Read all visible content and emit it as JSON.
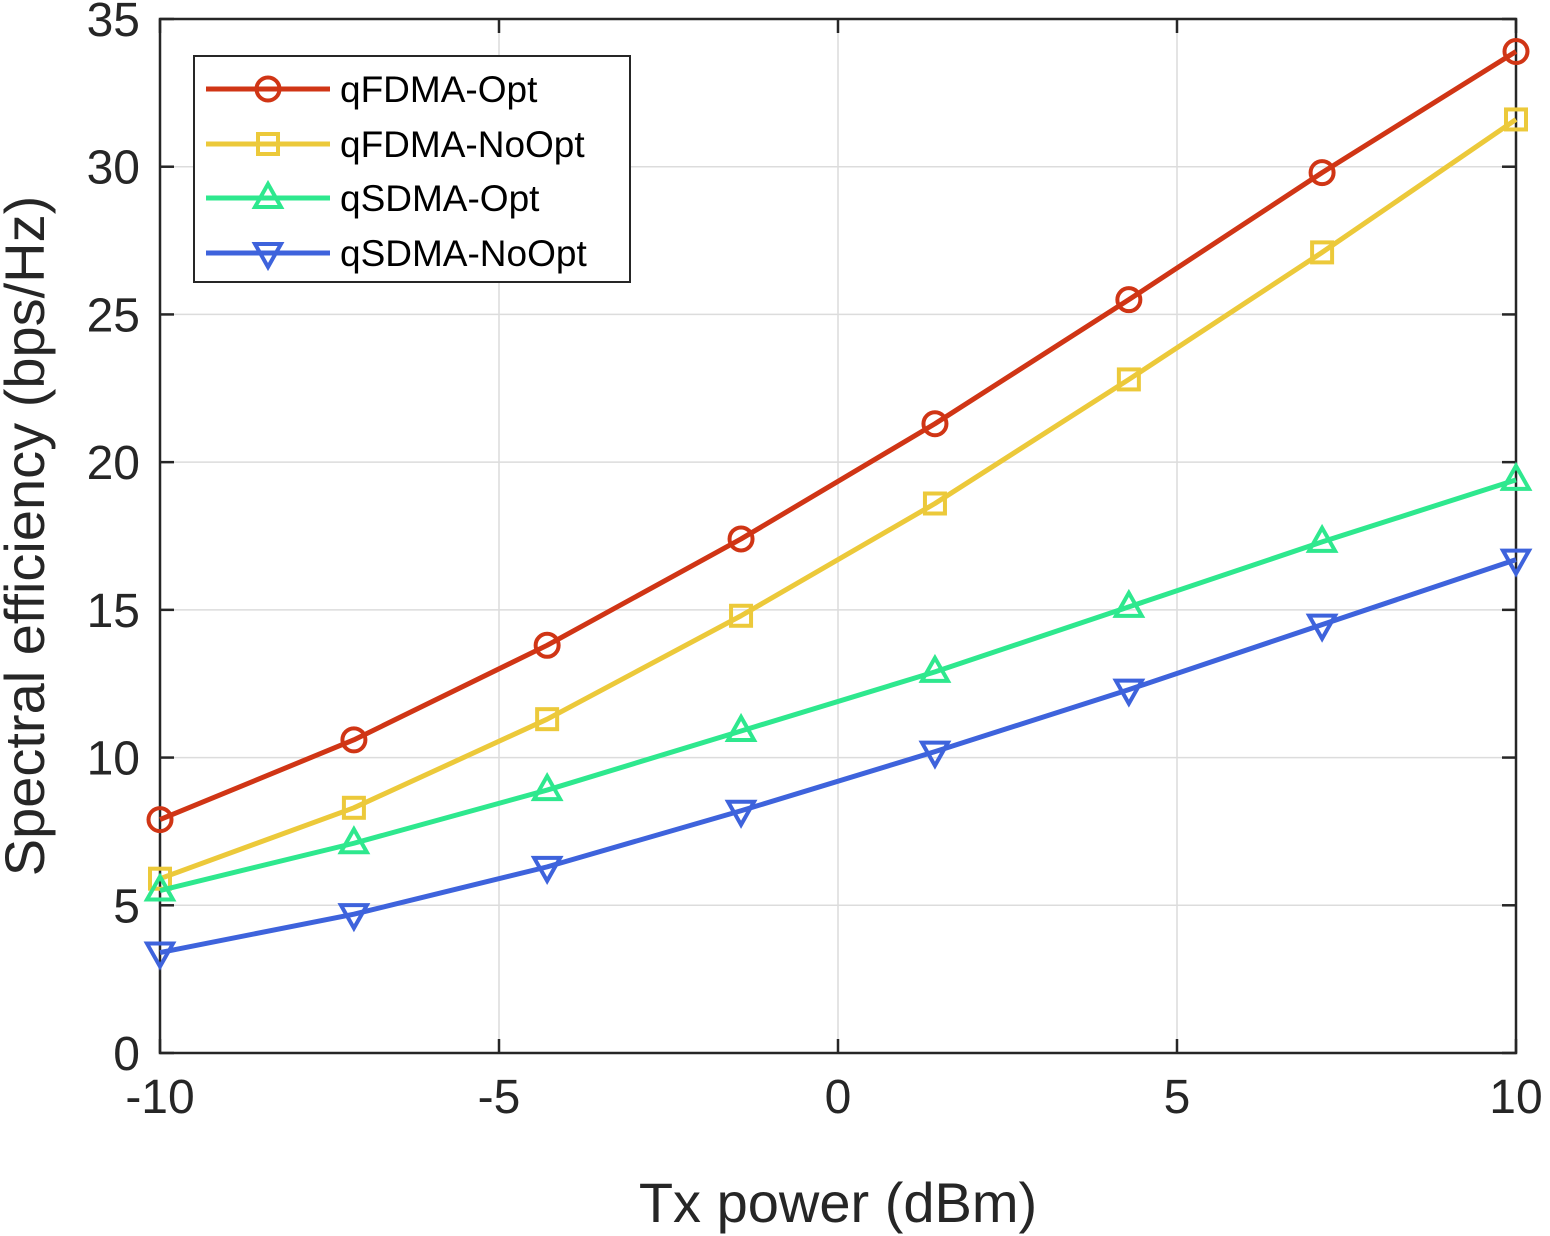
{
  "chart_data": {
    "type": "line",
    "xlabel": "Tx power (dBm)",
    "ylabel": "Spectral efficiency (bps/Hz)",
    "xlim": [
      -10,
      10
    ],
    "ylim": [
      0,
      35
    ],
    "xticks": [
      -10,
      -5,
      0,
      5,
      10
    ],
    "yticks": [
      0,
      5,
      10,
      15,
      20,
      25,
      30,
      35
    ],
    "xtick_labels": [
      "-10",
      "-5",
      "0",
      "5",
      "10"
    ],
    "ytick_labels": [
      "0",
      "5",
      "10",
      "15",
      "20",
      "25",
      "30",
      "35"
    ],
    "grid": true,
    "legend_position": "top-left",
    "x": [
      -10,
      -7.14,
      -4.29,
      -1.43,
      1.43,
      4.29,
      7.14,
      10
    ],
    "series": [
      {
        "name": "qFDMA-Opt",
        "color": "#d03515",
        "marker": "circle",
        "values": [
          7.9,
          10.6,
          13.8,
          17.4,
          21.3,
          25.5,
          29.8,
          33.9
        ]
      },
      {
        "name": "qFDMA-NoOpt",
        "color": "#ecc93a",
        "marker": "square",
        "values": [
          5.9,
          8.3,
          11.3,
          14.8,
          18.6,
          22.8,
          27.1,
          31.6
        ]
      },
      {
        "name": "qSDMA-Opt",
        "color": "#2ee88e",
        "marker": "triangle-up",
        "values": [
          5.5,
          7.1,
          8.9,
          10.9,
          12.9,
          15.1,
          17.3,
          19.4
        ]
      },
      {
        "name": "qSDMA-NoOpt",
        "color": "#3e63dc",
        "marker": "triangle-down",
        "values": [
          3.4,
          4.7,
          6.3,
          8.2,
          10.2,
          12.3,
          14.5,
          16.7
        ]
      }
    ]
  }
}
